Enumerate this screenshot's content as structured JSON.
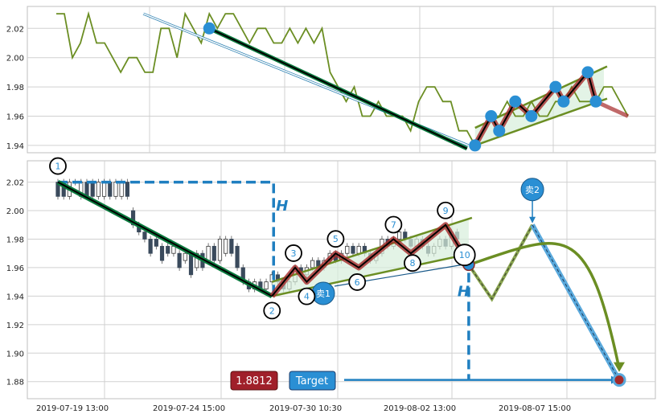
{
  "colors": {
    "green_line": "#6b8e23",
    "dark_green": "#0b7a3e",
    "marker_blue": "#2a8fd4",
    "zigzag_red": "#a52a2a",
    "dashed_blue": "#1f7fc0",
    "badge_red": "#a0202a",
    "badge_blue": "#2a8fd4",
    "grid": "#d0d0d0",
    "candle_dark": "#3a4a5c",
    "channel_fill": "#d7eedc"
  },
  "chart_data": [
    {
      "type": "line",
      "panel": "top",
      "ylim": [
        1.935,
        2.035
      ],
      "yticks": [
        "2.02",
        "2.00",
        "1.98",
        "1.96",
        "1.94"
      ],
      "ytick_values": [
        2.02,
        2.0,
        1.98,
        1.96,
        1.94
      ],
      "price_series": {
        "x": [
          0,
          1,
          2,
          3,
          4,
          5,
          6,
          7,
          8,
          9,
          10,
          11,
          12,
          13,
          14,
          15,
          16,
          17,
          18,
          19,
          20,
          21,
          22,
          23,
          24,
          25,
          26,
          27,
          28,
          29,
          30,
          31,
          32,
          33,
          34,
          35,
          36,
          37,
          38,
          39,
          40,
          41,
          42,
          43,
          44,
          45,
          46,
          47,
          48,
          49,
          50,
          51,
          52,
          53,
          54,
          55,
          56,
          57,
          58,
          59,
          60,
          61,
          62,
          63,
          64,
          65,
          66,
          67,
          68,
          69,
          70,
          71
        ],
        "y": [
          2.03,
          2.03,
          2.0,
          2.01,
          2.03,
          2.01,
          2.01,
          2.0,
          1.99,
          2.0,
          2.0,
          1.99,
          1.99,
          2.02,
          2.02,
          2.0,
          2.03,
          2.02,
          2.01,
          2.03,
          2.02,
          2.03,
          2.03,
          2.02,
          2.01,
          2.02,
          2.02,
          2.01,
          2.01,
          2.02,
          2.01,
          2.02,
          2.01,
          2.02,
          1.99,
          1.98,
          1.97,
          1.98,
          1.96,
          1.96,
          1.97,
          1.96,
          1.96,
          1.96,
          1.95,
          1.97,
          1.98,
          1.98,
          1.97,
          1.97,
          1.95,
          1.95,
          1.94,
          1.95,
          1.96,
          1.96,
          1.97,
          1.96,
          1.96,
          1.97,
          1.96,
          1.96,
          1.97,
          1.97,
          1.98,
          1.97,
          1.97,
          1.97,
          1.98,
          1.98,
          1.97,
          1.96
        ]
      },
      "points": [
        {
          "x": 19,
          "y": 2.02
        },
        {
          "x": 52,
          "y": 1.94
        },
        {
          "x": 54,
          "y": 1.96
        },
        {
          "x": 55,
          "y": 1.95
        },
        {
          "x": 57,
          "y": 1.97
        },
        {
          "x": 59,
          "y": 1.96
        },
        {
          "x": 62,
          "y": 1.98
        },
        {
          "x": 63,
          "y": 1.97
        },
        {
          "x": 66,
          "y": 1.99
        },
        {
          "x": 67,
          "y": 1.97
        }
      ],
      "channel_upper": [
        [
          52,
          1.952
        ],
        [
          68,
          1.994
        ]
      ],
      "channel_lower": [
        [
          52,
          1.94
        ],
        [
          68,
          1.972
        ]
      ]
    },
    {
      "type": "candlestick",
      "panel": "bottom",
      "ylim": [
        1.868,
        2.035
      ],
      "yticks": [
        "2.02",
        "2.00",
        "1.98",
        "1.96",
        "1.94",
        "1.92",
        "1.90",
        "1.88"
      ],
      "ytick_values": [
        2.02,
        2.0,
        1.98,
        1.96,
        1.94,
        1.92,
        1.9,
        1.88
      ],
      "xticks": [
        "2019-07-19 13:00",
        "2019-07-24 15:00",
        "2019-07-30 10:30",
        "2019-08-02 13:00",
        "2019-08-07 15:00"
      ],
      "xtick_index": [
        4,
        29,
        54,
        79,
        104
      ],
      "candles": [
        {
          "i": 0,
          "o": 2.02,
          "c": 2.01
        },
        {
          "i": 1,
          "o": 2.02,
          "c": 2.01
        },
        {
          "i": 2,
          "o": 2.01,
          "c": 2.02
        },
        {
          "i": 3,
          "o": 2.02,
          "c": 2.02
        },
        {
          "i": 4,
          "o": 2.01,
          "c": 2.02
        },
        {
          "i": 5,
          "o": 2.02,
          "c": 2.01
        },
        {
          "i": 6,
          "o": 2.02,
          "c": 2.01
        },
        {
          "i": 7,
          "o": 2.01,
          "c": 2.02
        },
        {
          "i": 8,
          "o": 2.01,
          "c": 2.02
        },
        {
          "i": 9,
          "o": 2.02,
          "c": 2.01
        },
        {
          "i": 10,
          "o": 2.01,
          "c": 2.02
        },
        {
          "i": 11,
          "o": 2.01,
          "c": 2.02
        },
        {
          "i": 12,
          "o": 2.02,
          "c": 2.01
        },
        {
          "i": 13,
          "o": 2.0,
          "c": 1.99
        },
        {
          "i": 14,
          "o": 1.99,
          "c": 1.985
        },
        {
          "i": 15,
          "o": 1.985,
          "c": 1.98
        },
        {
          "i": 16,
          "o": 1.98,
          "c": 1.97
        },
        {
          "i": 17,
          "o": 1.98,
          "c": 1.975
        },
        {
          "i": 18,
          "o": 1.975,
          "c": 1.965
        },
        {
          "i": 19,
          "o": 1.975,
          "c": 1.97
        },
        {
          "i": 20,
          "o": 1.97,
          "c": 1.975
        },
        {
          "i": 21,
          "o": 1.97,
          "c": 1.96
        },
        {
          "i": 22,
          "o": 1.965,
          "c": 1.97
        },
        {
          "i": 23,
          "o": 1.97,
          "c": 1.955
        },
        {
          "i": 24,
          "o": 1.96,
          "c": 1.97
        },
        {
          "i": 25,
          "o": 1.97,
          "c": 1.96
        },
        {
          "i": 26,
          "o": 1.965,
          "c": 1.975
        },
        {
          "i": 27,
          "o": 1.975,
          "c": 1.965
        },
        {
          "i": 28,
          "o": 1.965,
          "c": 1.98
        },
        {
          "i": 29,
          "o": 1.97,
          "c": 1.98
        },
        {
          "i": 30,
          "o": 1.98,
          "c": 1.97
        },
        {
          "i": 31,
          "o": 1.975,
          "c": 1.96
        },
        {
          "i": 32,
          "o": 1.96,
          "c": 1.95
        },
        {
          "i": 33,
          "o": 1.95,
          "c": 1.945
        },
        {
          "i": 34,
          "o": 1.945,
          "c": 1.95
        },
        {
          "i": 35,
          "o": 1.95,
          "c": 1.945
        },
        {
          "i": 36,
          "o": 1.945,
          "c": 1.95
        },
        {
          "i": 37,
          "o": 1.95,
          "c": 1.955
        },
        {
          "i": 38,
          "o": 1.955,
          "c": 1.95
        },
        {
          "i": 39,
          "o": 1.95,
          "c": 1.945
        },
        {
          "i": 40,
          "o": 1.945,
          "c": 1.95
        },
        {
          "i": 41,
          "o": 1.95,
          "c": 1.96
        },
        {
          "i": 42,
          "o": 1.96,
          "c": 1.955
        },
        {
          "i": 43,
          "o": 1.955,
          "c": 1.96
        },
        {
          "i": 44,
          "o": 1.96,
          "c": 1.965
        },
        {
          "i": 45,
          "o": 1.965,
          "c": 1.96
        },
        {
          "i": 46,
          "o": 1.96,
          "c": 1.965
        },
        {
          "i": 47,
          "o": 1.965,
          "c": 1.97
        },
        {
          "i": 48,
          "o": 1.97,
          "c": 1.965
        },
        {
          "i": 49,
          "o": 1.965,
          "c": 1.97
        },
        {
          "i": 50,
          "o": 1.97,
          "c": 1.975
        },
        {
          "i": 51,
          "o": 1.975,
          "c": 1.97
        },
        {
          "i": 52,
          "o": 1.97,
          "c": 1.975
        },
        {
          "i": 53,
          "o": 1.975,
          "c": 1.97
        },
        {
          "i": 54,
          "o": 1.97,
          "c": 1.965
        },
        {
          "i": 55,
          "o": 1.965,
          "c": 1.97
        },
        {
          "i": 56,
          "o": 1.97,
          "c": 1.98
        },
        {
          "i": 57,
          "o": 1.98,
          "c": 1.975
        },
        {
          "i": 58,
          "o": 1.975,
          "c": 1.98
        },
        {
          "i": 59,
          "o": 1.98,
          "c": 1.985
        },
        {
          "i": 60,
          "o": 1.985,
          "c": 1.98
        },
        {
          "i": 61,
          "o": 1.98,
          "c": 1.975
        },
        {
          "i": 62,
          "o": 1.975,
          "c": 1.98
        },
        {
          "i": 63,
          "o": 1.98,
          "c": 1.975
        },
        {
          "i": 64,
          "o": 1.975,
          "c": 1.97
        },
        {
          "i": 65,
          "o": 1.97,
          "c": 1.975
        },
        {
          "i": 66,
          "o": 1.975,
          "c": 1.98
        },
        {
          "i": 67,
          "o": 1.98,
          "c": 1.975
        },
        {
          "i": 68,
          "o": 1.975,
          "c": 1.985
        },
        {
          "i": 69,
          "o": 1.985,
          "c": 1.98
        }
      ],
      "zigzag_points": [
        {
          "label": "1",
          "x": 0,
          "y": 2.02
        },
        {
          "label": "2",
          "x": 37,
          "y": 1.94
        },
        {
          "label": "3",
          "x": 41,
          "y": 1.96
        },
        {
          "label": "4",
          "x": 43,
          "y": 1.95
        },
        {
          "label": "5",
          "x": 48,
          "y": 1.97
        },
        {
          "label": "6",
          "x": 52,
          "y": 1.96
        },
        {
          "label": "7",
          "x": 58,
          "y": 1.98
        },
        {
          "label": "8",
          "x": 61,
          "y": 1.97
        },
        {
          "label": "9",
          "x": 67,
          "y": 1.99
        },
        {
          "label": "10",
          "x": 70,
          "y": 1.97
        }
      ],
      "channel_upper": [
        [
          37,
          1.95
        ],
        [
          71,
          1.995
        ]
      ],
      "channel_lower": [
        [
          37,
          1.94
        ],
        [
          71,
          1.97
        ]
      ],
      "h_top": 2.02,
      "h_bottom": 1.94,
      "h_label": "H",
      "projection": [
        [
          71,
          1.962
        ],
        [
          75,
          1.938
        ],
        [
          82,
          1.99
        ],
        [
          97,
          1.881
        ]
      ],
      "sell1": {
        "label": "卖1",
        "x": 71,
        "y": 1.962
      },
      "sell2": {
        "label": "卖2",
        "x": 82,
        "y": 1.99
      },
      "target_value": "1.8812",
      "target_label": "Target",
      "target_y": 1.8812,
      "target_x": 97
    }
  ]
}
